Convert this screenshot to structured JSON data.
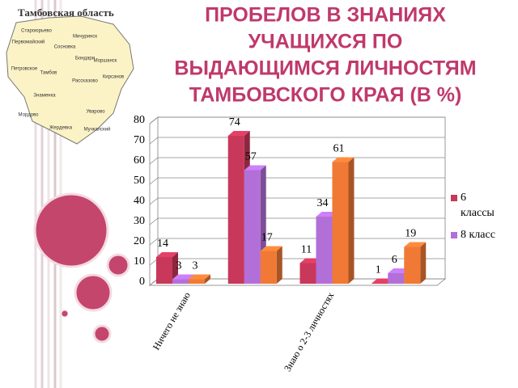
{
  "map": {
    "title": "Тамбовская область",
    "places": [
      "Староюрьево",
      "Первомайский",
      "Сосновка",
      "Мичуринск",
      "Моршанск",
      "Бондари",
      "Тамбов",
      "Петровское",
      "Рассказово",
      "Кирсанов",
      "Знаменка",
      "Мордово",
      "Уварово",
      "Жердевка",
      "Мучкапский"
    ]
  },
  "chart_data": {
    "type": "bar3d",
    "title": [
      "ПРОБЕЛОВ В ЗНАНИЯХ",
      "УЧАЩИХСЯ ПО",
      "ВЫДАЮЩИМСЯ ЛИЧНОСТЯМ",
      "ТАМБОВСКОГО КРАЯ (В %)"
    ],
    "categories": [
      "Ничего не знаю",
      null,
      "Знаю о 2-3 личностях",
      null
    ],
    "series": [
      {
        "name": "6 классы",
        "color": "#c8385a",
        "values": [
          14,
          74,
          11,
          1
        ]
      },
      {
        "name": "8 класс",
        "color": "#b26fd8",
        "values": [
          3,
          57,
          34,
          6
        ]
      },
      {
        "color": "#f07a35",
        "values": [
          3,
          17,
          61,
          19
        ]
      }
    ],
    "ylim": [
      0,
      80
    ],
    "yticks": [
      0,
      10,
      20,
      30,
      40,
      50,
      60,
      70,
      80
    ],
    "grid": true,
    "legend": "right"
  }
}
